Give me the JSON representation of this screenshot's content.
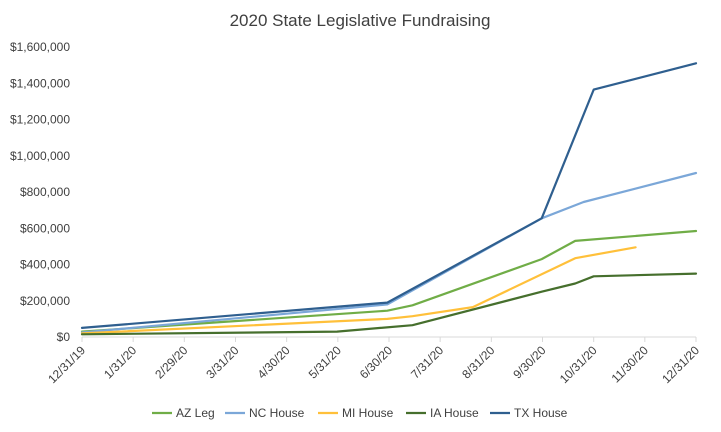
{
  "chart_data": {
    "type": "line",
    "title": "2020 State Legislative Fundraising",
    "xlabel": "",
    "ylabel": "",
    "x_ticks": [
      "12/31/19",
      "1/31/20",
      "2/29/20",
      "3/31/20",
      "4/30/20",
      "5/31/20",
      "6/30/20",
      "7/31/20",
      "8/31/20",
      "9/30/20",
      "10/31/20",
      "11/30/20",
      "12/31/20"
    ],
    "y_ticks": [
      "$0",
      "$200,000",
      "$400,000",
      "$600,000",
      "$800,000",
      "$1,000,000",
      "$1,200,000",
      "$1,400,000",
      "$1,600,000"
    ],
    "ylim": [
      0,
      1600000
    ],
    "xlim": [
      "2019-12-31",
      "2020-12-31"
    ],
    "grid": false,
    "legend_position": "bottom",
    "series": [
      {
        "name": "AZ Leg",
        "color": "#70ad47",
        "points": [
          [
            "2019-12-31",
            30000
          ],
          [
            "2020-06-30",
            145000
          ],
          [
            "2020-07-15",
            175000
          ],
          [
            "2020-09-30",
            430000
          ],
          [
            "2020-10-20",
            530000
          ],
          [
            "2020-12-31",
            585000
          ]
        ]
      },
      {
        "name": "NC House",
        "color": "#7ba7d8",
        "points": [
          [
            "2019-12-31",
            25000
          ],
          [
            "2020-06-30",
            180000
          ],
          [
            "2020-09-30",
            655000
          ],
          [
            "2020-10-25",
            745000
          ],
          [
            "2020-12-31",
            905000
          ]
        ]
      },
      {
        "name": "MI House",
        "color": "#ffc03a",
        "points": [
          [
            "2019-12-31",
            20000
          ],
          [
            "2020-06-30",
            100000
          ],
          [
            "2020-07-15",
            115000
          ],
          [
            "2020-08-20",
            165000
          ],
          [
            "2020-10-20",
            435000
          ],
          [
            "2020-11-25",
            495000
          ]
        ]
      },
      {
        "name": "IA House",
        "color": "#466f2d",
        "points": [
          [
            "2019-12-31",
            15000
          ],
          [
            "2020-05-31",
            30000
          ],
          [
            "2020-07-15",
            65000
          ],
          [
            "2020-09-30",
            250000
          ],
          [
            "2020-10-20",
            295000
          ],
          [
            "2020-10-31",
            335000
          ],
          [
            "2020-12-31",
            350000
          ]
        ]
      },
      {
        "name": "TX House",
        "color": "#2f5f8f",
        "points": [
          [
            "2019-12-31",
            50000
          ],
          [
            "2020-06-30",
            190000
          ],
          [
            "2020-09-30",
            655000
          ],
          [
            "2020-10-31",
            1365000
          ],
          [
            "2020-12-31",
            1510000
          ]
        ]
      }
    ]
  }
}
